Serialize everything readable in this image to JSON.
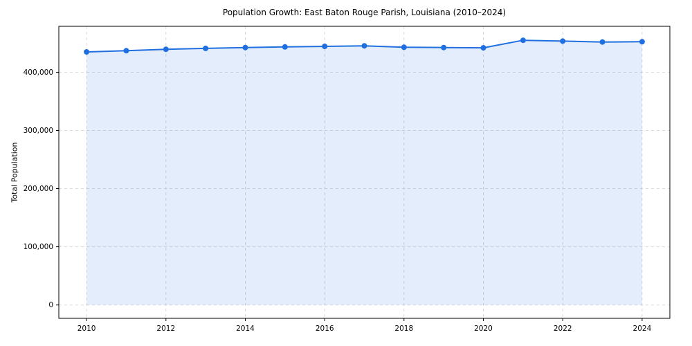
{
  "chart_data": {
    "type": "line",
    "title": "Population Growth: East Baton Rouge Parish, Louisiana (2010–2024)",
    "xlabel": "",
    "ylabel": "Total Population",
    "x": [
      2010,
      2011,
      2012,
      2013,
      2014,
      2015,
      2016,
      2017,
      2018,
      2019,
      2020,
      2021,
      2022,
      2023,
      2024
    ],
    "series": [
      {
        "name": "Total Population",
        "values": [
          435000,
          437000,
          439500,
          441000,
          442500,
          443500,
          444500,
          445500,
          443000,
          442500,
          442000,
          455000,
          453500,
          452000,
          452500
        ]
      }
    ],
    "xlim": [
      2009.3,
      2024.7
    ],
    "ylim": [
      -23000,
      479000
    ],
    "xticks": [
      2010,
      2012,
      2014,
      2016,
      2018,
      2020,
      2022,
      2024
    ],
    "xtick_labels": [
      "2010",
      "2012",
      "2014",
      "2016",
      "2018",
      "2020",
      "2022",
      "2024"
    ],
    "yticks": [
      0,
      100000,
      200000,
      300000,
      400000
    ],
    "ytick_labels": [
      "0",
      "100,000",
      "200,000",
      "300,000",
      "400,000"
    ],
    "grid": true,
    "grid_style": "dashed",
    "legend": "none",
    "marker": "circle",
    "marker_radius": 4,
    "line_width": 2,
    "area_fill_baseline": 0,
    "colors": {
      "line": "#1f6fe0",
      "marker": "#1f6fe0",
      "fill": "rgba(31, 111, 224, 0.12)",
      "grid": "#d9d9d9",
      "axes": "#000000",
      "background": "#ffffff"
    }
  }
}
